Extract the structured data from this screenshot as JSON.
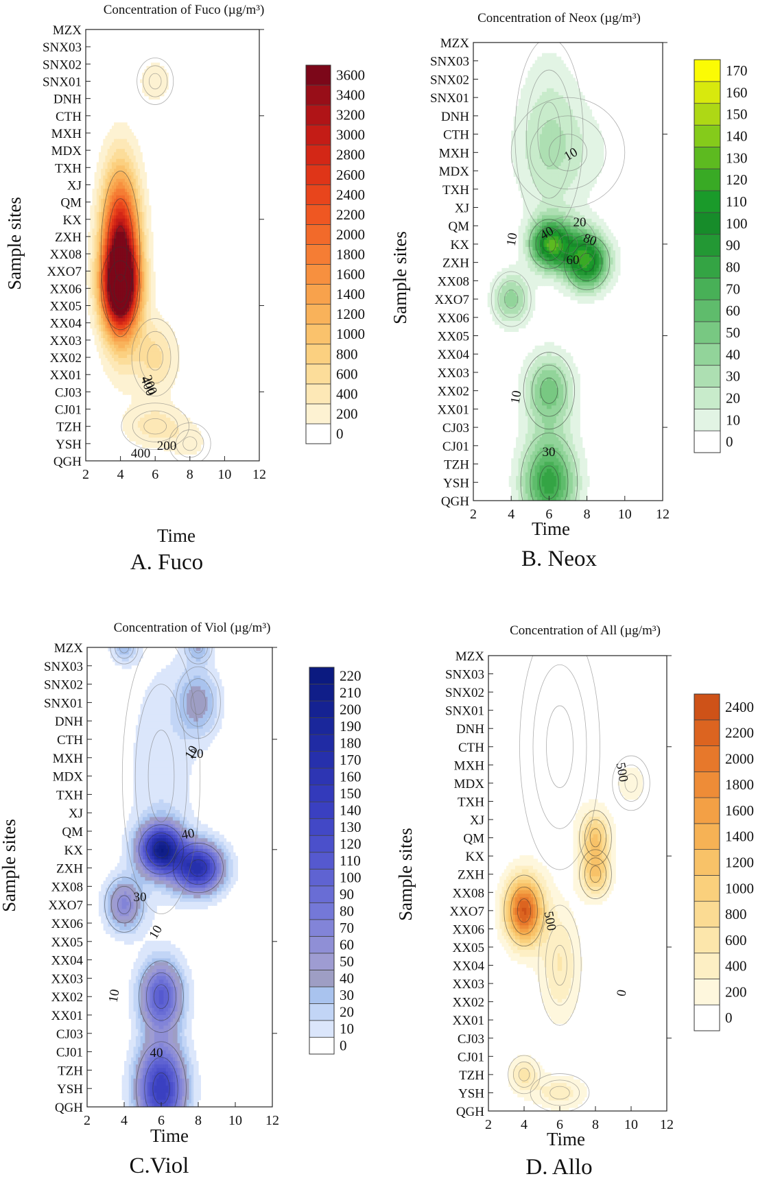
{
  "sites": [
    "MZX",
    "SNX03",
    "SNX02",
    "SNX01",
    "DNH",
    "CTH",
    "MXH",
    "MDX",
    "TXH",
    "XJ",
    "QM",
    "KX",
    "ZXH",
    "XX08",
    "XXO7",
    "XX06",
    "XX05",
    "XX04",
    "XX03",
    "XX02",
    "XX01",
    "CJ03",
    "CJ01",
    "TZH",
    "YSH",
    "QGH"
  ],
  "chart_data": [
    {
      "type": "heatmap",
      "panel_label": "A. Fuco",
      "title": "Concentration of Fuco (µg/m³)",
      "xlabel": "Time",
      "ylabel": "Sample sites",
      "x_ticks": [
        2,
        4,
        6,
        8,
        10,
        12
      ],
      "xlim": [
        2,
        12
      ],
      "colorbar_ticks": [
        0,
        200,
        400,
        600,
        800,
        1000,
        1200,
        1400,
        1600,
        1800,
        2000,
        2200,
        2400,
        2600,
        2800,
        3000,
        3200,
        3400,
        3600
      ],
      "colors": [
        "#ffffff",
        "#fdf2d2",
        "#fde8b6",
        "#fcdd9a",
        "#fbd080",
        "#fac26c",
        "#f9b25a",
        "#f8a24c",
        "#f7903f",
        "#f57d34",
        "#f26a2a",
        "#ef5722",
        "#e8451c",
        "#df3518",
        "#d32716",
        "#c41c16",
        "#b01417",
        "#980e18",
        "#7c0719"
      ],
      "contour_labels": [
        "200",
        "400",
        "400",
        "200"
      ],
      "peaks": [
        {
          "x": 4,
          "site": "XX08",
          "value": 3600,
          "sx": 0.75,
          "sy": 3.2
        },
        {
          "x": 4,
          "site": "XX06",
          "value": 2600,
          "sx": 0.75,
          "sy": 1.6
        },
        {
          "x": 6,
          "site": "XX02",
          "value": 650,
          "sx": 0.9,
          "sy": 1.5
        },
        {
          "x": 6,
          "site": "SNX01",
          "value": 380,
          "sx": 0.7,
          "sy": 0.9
        },
        {
          "x": 6,
          "site": "TZH",
          "value": 500,
          "sx": 1.3,
          "sy": 0.9
        },
        {
          "x": 8,
          "site": "YSH",
          "value": 250,
          "sx": 0.8,
          "sy": 0.8
        }
      ]
    },
    {
      "type": "heatmap",
      "panel_label": "B. Neox",
      "title": "Concentration of Neox (µg/m³)",
      "xlabel": "Time",
      "ylabel": "Sample sites",
      "x_ticks": [
        2,
        4,
        6,
        8,
        10,
        12
      ],
      "xlim": [
        2,
        12
      ],
      "colorbar_ticks": [
        0,
        10,
        20,
        30,
        40,
        50,
        60,
        70,
        80,
        90,
        100,
        110,
        120,
        130,
        140,
        150,
        160,
        170
      ],
      "colors": [
        "#ffffff",
        "#e2f4e4",
        "#c8ebcb",
        "#addfb2",
        "#92d49a",
        "#78c882",
        "#5fbc6c",
        "#48b057",
        "#34a444",
        "#239834",
        "#178c2a",
        "#1a9a2a",
        "#39aa25",
        "#5dba20",
        "#85cb1b",
        "#aed815",
        "#d8e90d",
        "#fbfb04"
      ],
      "contour_labels": [
        "10",
        "20",
        "40",
        "80",
        "60",
        "10",
        "10",
        "30"
      ],
      "peaks": [
        {
          "x": 6,
          "site": "KX",
          "value": 100,
          "sx": 0.7,
          "sy": 0.9
        },
        {
          "x": 8,
          "site": "ZXH",
          "value": 110,
          "sx": 0.8,
          "sy": 1.0
        },
        {
          "x": 7,
          "site": "KX",
          "value": 40,
          "sx": 1.0,
          "sy": 1.0
        },
        {
          "x": 4,
          "site": "XXO7",
          "value": 45,
          "sx": 0.7,
          "sy": 1.0
        },
        {
          "x": 6,
          "site": "XX02",
          "value": 55,
          "sx": 0.9,
          "sy": 1.4
        },
        {
          "x": 6,
          "site": "YSH",
          "value": 85,
          "sx": 1.0,
          "sy": 1.8
        },
        {
          "x": 6,
          "site": "CTH",
          "value": 22,
          "sx": 1.2,
          "sy": 3.5
        },
        {
          "x": 7,
          "site": "MXH",
          "value": 14,
          "sx": 2.0,
          "sy": 2.0
        }
      ]
    },
    {
      "type": "heatmap",
      "panel_label": "C.Viol",
      "title": "Concentration of Viol (µg/m³)",
      "xlabel": "Time",
      "ylabel": "Sample sites",
      "x_ticks": [
        2,
        4,
        6,
        8,
        10,
        12
      ],
      "xlim": [
        2,
        12
      ],
      "colorbar_ticks": [
        0,
        10,
        20,
        30,
        40,
        50,
        60,
        70,
        80,
        90,
        100,
        110,
        120,
        130,
        140,
        150,
        160,
        170,
        180,
        190,
        200,
        210,
        220
      ],
      "colors": [
        "#ffffff",
        "#dbe6fb",
        "#c2d5f6",
        "#a9c3ee",
        "#9e9ec4",
        "#9e9cd2",
        "#8f8fd6",
        "#8284d8",
        "#7478d8",
        "#696dd5",
        "#5f63d2",
        "#5559cf",
        "#4b50cb",
        "#4248c6",
        "#3a40c1",
        "#333abb",
        "#2d35b3",
        "#2630ac",
        "#202ba4",
        "#1a279b",
        "#152292",
        "#101e89",
        "#0b1a80"
      ],
      "contour_labels": [
        "10",
        "20",
        "40",
        "30",
        "10",
        "10",
        "40"
      ],
      "peaks": [
        {
          "x": 6,
          "site": "KX",
          "value": 200,
          "sx": 0.8,
          "sy": 0.9
        },
        {
          "x": 8,
          "site": "ZXH",
          "value": 170,
          "sx": 0.9,
          "sy": 0.9
        },
        {
          "x": 4,
          "site": "XXO7",
          "value": 70,
          "sx": 0.7,
          "sy": 1.0
        },
        {
          "x": 6,
          "site": "XX02",
          "value": 110,
          "sx": 0.8,
          "sy": 1.3
        },
        {
          "x": 6,
          "site": "YSH",
          "value": 150,
          "sx": 0.9,
          "sy": 1.7
        },
        {
          "x": 8,
          "site": "SNX01",
          "value": 45,
          "sx": 0.8,
          "sy": 1.3
        },
        {
          "x": 4,
          "site": "MZX",
          "value": 35,
          "sx": 0.5,
          "sy": 0.6
        },
        {
          "x": 8,
          "site": "MZX",
          "value": 35,
          "sx": 0.5,
          "sy": 0.6
        },
        {
          "x": 6,
          "site": "MDX",
          "value": 18,
          "sx": 1.4,
          "sy": 5.0
        }
      ]
    },
    {
      "type": "heatmap",
      "panel_label": "D. Allo",
      "title": "Concentration of All (µg/m³)",
      "xlabel": "Time",
      "ylabel": "Sample sites",
      "x_ticks": [
        2,
        4,
        6,
        8,
        10,
        12
      ],
      "xlim": [
        2,
        12
      ],
      "colorbar_ticks": [
        0,
        200,
        400,
        600,
        800,
        1000,
        1200,
        1400,
        1600,
        1800,
        2000,
        2200,
        2400
      ],
      "colors": [
        "#ffffff",
        "#fef7dd",
        "#fdefc4",
        "#fce6ab",
        "#fbdb93",
        "#fad07c",
        "#f8c268",
        "#f6b255",
        "#f3a045",
        "#ee8c37",
        "#e7782b",
        "#dc6420",
        "#ce5218",
        "#bd4312",
        "#a8370f",
        "#912d0c",
        "#78240a",
        "#5f1c09"
      ],
      "contour_labels": [
        "500",
        "500",
        "0"
      ],
      "peaks": [
        {
          "x": 4,
          "site": "XXO7",
          "value": 2400,
          "sx": 0.75,
          "sy": 1.3
        },
        {
          "x": 6,
          "site": "XX04",
          "value": 600,
          "sx": 0.8,
          "sy": 2.2
        },
        {
          "x": 8,
          "site": "QM",
          "value": 1100,
          "sx": 0.6,
          "sy": 1.0
        },
        {
          "x": 8,
          "site": "ZXH",
          "value": 1100,
          "sx": 0.6,
          "sy": 0.9
        },
        {
          "x": 4,
          "site": "TZH",
          "value": 650,
          "sx": 0.6,
          "sy": 0.7
        },
        {
          "x": 6,
          "site": "YSH",
          "value": 500,
          "sx": 1.1,
          "sy": 0.7
        },
        {
          "x": 10,
          "site": "MDX",
          "value": 300,
          "sx": 0.7,
          "sy": 1.0
        },
        {
          "x": 6,
          "site": "CTH",
          "value": 180,
          "sx": 1.5,
          "sy": 4.5
        }
      ]
    }
  ]
}
